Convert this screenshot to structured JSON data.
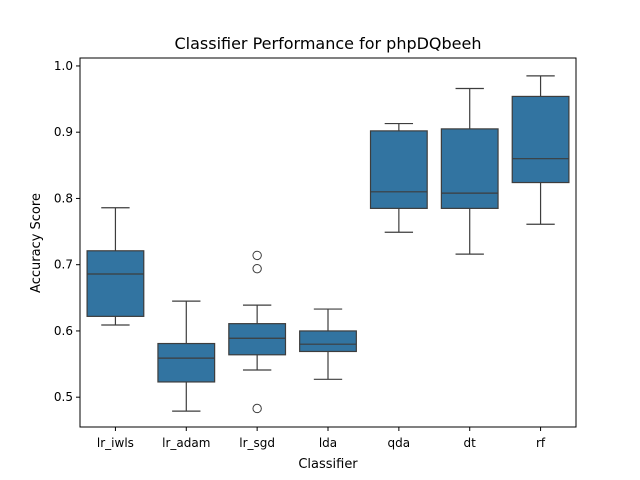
{
  "chart_data": {
    "type": "box",
    "title": "Classifier Performance for phpDQbeeh",
    "xlabel": "Classifier",
    "ylabel": "Accuracy Score",
    "ylim": [
      0.455,
      1.012
    ],
    "yticks": [
      0.5,
      0.6,
      0.7,
      0.8,
      0.9,
      1.0
    ],
    "ytick_labels": [
      "0.5",
      "0.6",
      "0.7",
      "0.8",
      "0.9",
      "1.0"
    ],
    "grid": false,
    "categories": [
      "lr_iwls",
      "lr_adam",
      "lr_sgd",
      "lda",
      "qda",
      "dt",
      "rf"
    ],
    "boxes": [
      {
        "whisker_low": 0.609,
        "q1": 0.622,
        "median": 0.686,
        "q3": 0.721,
        "whisker_high": 0.786,
        "outliers": []
      },
      {
        "whisker_low": 0.479,
        "q1": 0.523,
        "median": 0.559,
        "q3": 0.581,
        "whisker_high": 0.645,
        "outliers": []
      },
      {
        "whisker_low": 0.541,
        "q1": 0.564,
        "median": 0.589,
        "q3": 0.611,
        "whisker_high": 0.639,
        "outliers": [
          0.714,
          0.694,
          0.483
        ]
      },
      {
        "whisker_low": 0.527,
        "q1": 0.569,
        "median": 0.58,
        "q3": 0.6,
        "whisker_high": 0.633,
        "outliers": []
      },
      {
        "whisker_low": 0.749,
        "q1": 0.785,
        "median": 0.81,
        "q3": 0.902,
        "whisker_high": 0.913,
        "outliers": []
      },
      {
        "whisker_low": 0.716,
        "q1": 0.785,
        "median": 0.808,
        "q3": 0.905,
        "whisker_high": 0.966,
        "outliers": []
      },
      {
        "whisker_low": 0.761,
        "q1": 0.824,
        "median": 0.86,
        "q3": 0.954,
        "whisker_high": 0.985,
        "outliers": []
      }
    ],
    "box_color": "#3274a1",
    "line_color": "#3d3d3d"
  }
}
